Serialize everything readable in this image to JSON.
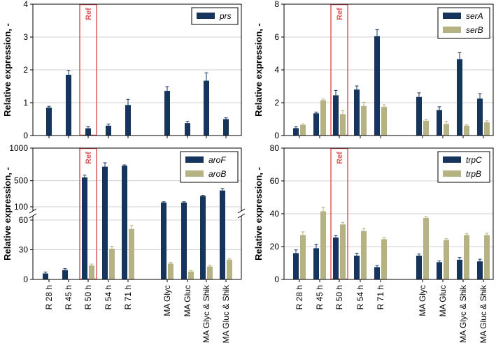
{
  "colors": {
    "dark": "#16355c",
    "tan": "#b5b283",
    "ref": "#e05a5a",
    "grid": "#d0d0d0"
  },
  "chart_data": [
    {
      "type": "bar",
      "panel": "top-left",
      "ylabel": "Relative expression, -",
      "ylim": [
        0,
        4
      ],
      "yticks": [
        "0",
        "1",
        "2",
        "3",
        "4"
      ],
      "ref_label": "Ref",
      "legend_position": "top-right",
      "categories": [
        "R 28 h",
        "R 45 h",
        "R 50 h",
        "R 54 h",
        "R 71 h",
        "MA Glyc",
        "MA Gluc",
        "MA Glyc & Shik",
        "MA Gluc & Shik"
      ],
      "series": [
        {
          "name": "prs",
          "values": [
            0.85,
            1.85,
            0.22,
            0.3,
            0.93,
            1.36,
            0.38,
            1.67,
            0.5
          ],
          "errors": [
            0.04,
            0.13,
            0.05,
            0.05,
            0.17,
            0.13,
            0.05,
            0.24,
            0.04
          ]
        }
      ]
    },
    {
      "type": "bar",
      "panel": "top-right",
      "ylabel": "Relative expression, -",
      "ylim": [
        0,
        8
      ],
      "yticks": [
        "0",
        "2",
        "4",
        "6",
        "8"
      ],
      "ref_label": "Ref",
      "legend_position": "top-right",
      "categories": [
        "R 28 h",
        "R 45 h",
        "R 50 h",
        "R 54 h",
        "R 71 h",
        "MA Glyc",
        "MA Gluc",
        "MA Glyc & Shik",
        "MA Gluc & Shik"
      ],
      "series": [
        {
          "name": "serA",
          "values": [
            0.45,
            1.35,
            2.45,
            2.8,
            6.05,
            2.35,
            1.55,
            4.65,
            2.25
          ],
          "errors": [
            0.08,
            0.08,
            0.3,
            0.22,
            0.4,
            0.25,
            0.2,
            0.4,
            0.3
          ]
        },
        {
          "name": "serB",
          "values": [
            0.65,
            2.15,
            1.3,
            1.8,
            1.75,
            0.9,
            0.7,
            0.6,
            0.8
          ],
          "errors": [
            0.06,
            0.07,
            0.22,
            0.22,
            0.12,
            0.08,
            0.16,
            0.05,
            0.1
          ]
        }
      ]
    },
    {
      "type": "bar",
      "panel": "bottom-left",
      "ylabel": "Relative expression, -",
      "broken_axis": true,
      "ylim_lower": [
        0,
        60
      ],
      "ylim_upper": [
        100,
        1000
      ],
      "yticks_lower": [
        "0",
        "30",
        "60"
      ],
      "yticks_upper": [
        "100",
        "500",
        "1000"
      ],
      "ref_label": "Ref",
      "legend_position": "top-right",
      "categories": [
        "R 28 h",
        "R 45 h",
        "R 50 h",
        "R 54 h",
        "R 71 h",
        "MA Glyc",
        "MA Gluc",
        "MA Glyc & Shik",
        "MA Gluc & Shik"
      ],
      "series": [
        {
          "name": "aroF",
          "values": [
            6,
            9.5,
            550,
            715,
            730,
            165,
            165,
            265,
            350
          ],
          "errors": [
            1.5,
            1.5,
            35,
            60,
            12,
            12,
            12,
            12,
            30
          ]
        },
        {
          "name": "aroB",
          "values": [
            0,
            0,
            14,
            31,
            51,
            16,
            8,
            13,
            20
          ],
          "errors": [
            0,
            0,
            1.5,
            2.5,
            3.5,
            1.2,
            1,
            1.5,
            1.2
          ]
        }
      ]
    },
    {
      "type": "bar",
      "panel": "bottom-right",
      "ylabel": "Relative expression, -",
      "ylim": [
        0,
        80
      ],
      "yticks": [
        "0",
        "20",
        "40",
        "60",
        "80"
      ],
      "ref_label": "Ref",
      "legend_position": "top-right",
      "categories": [
        "R 28 h",
        "R 45 h",
        "R 50 h",
        "R 54 h",
        "R 71 h",
        "MA Glyc",
        "MA Gluc",
        "MA Glyc & Shik",
        "MA Gluc & Shik"
      ],
      "series": [
        {
          "name": "trpC",
          "values": [
            16,
            19,
            25.5,
            14.5,
            7.5,
            14.5,
            10.5,
            12,
            11
          ],
          "errors": [
            2,
            2.5,
            1.2,
            1.5,
            1,
            1,
            0.8,
            1.3,
            1.3
          ]
        },
        {
          "name": "trpB",
          "values": [
            27,
            41.5,
            33.5,
            29.5,
            24.5,
            37.5,
            24,
            27,
            27
          ],
          "errors": [
            2,
            2.5,
            1.3,
            1.5,
            1,
            0.8,
            0.8,
            1,
            1.2
          ]
        }
      ]
    }
  ]
}
